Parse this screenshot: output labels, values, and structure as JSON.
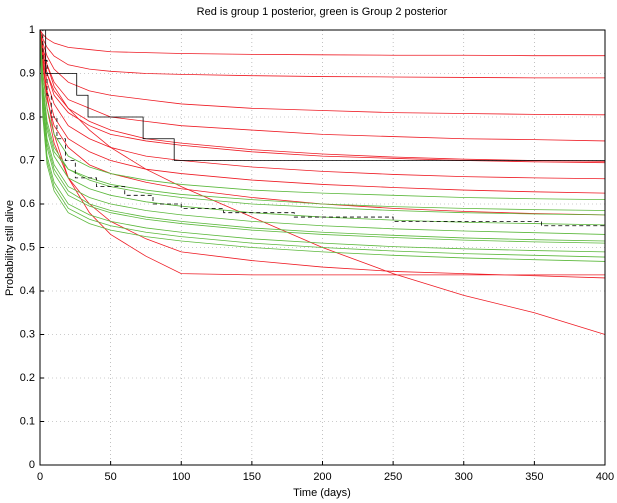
{
  "chart_data": {
    "type": "line",
    "title": "Red is group 1 posterior, green is Group 2 posterior",
    "xlabel": "Time (days)",
    "ylabel": "Probability still alive",
    "xlim": [
      0,
      400
    ],
    "ylim": [
      0,
      1
    ],
    "xticks": [
      0,
      50,
      100,
      150,
      200,
      250,
      300,
      350,
      400
    ],
    "yticks": [
      0,
      0.1,
      0.2,
      0.3,
      0.4,
      0.5,
      0.6,
      0.7,
      0.8,
      0.9,
      1
    ],
    "grid": true,
    "x": [
      0,
      2,
      5,
      10,
      20,
      35,
      50,
      75,
      100,
      150,
      200,
      250,
      300,
      350,
      400
    ],
    "series": [
      {
        "color": "#ee1c25",
        "values": [
          1,
          0.99,
          0.98,
          0.97,
          0.96,
          0.955,
          0.95,
          0.948,
          0.946,
          0.944,
          0.943,
          0.942,
          0.942,
          0.941,
          0.941
        ]
      },
      {
        "color": "#ee1c25",
        "values": [
          1,
          0.98,
          0.96,
          0.94,
          0.92,
          0.91,
          0.905,
          0.9,
          0.898,
          0.895,
          0.893,
          0.892,
          0.891,
          0.89,
          0.89
        ]
      },
      {
        "color": "#ee1c25",
        "values": [
          1,
          0.97,
          0.94,
          0.91,
          0.88,
          0.86,
          0.85,
          0.84,
          0.83,
          0.82,
          0.815,
          0.81,
          0.808,
          0.806,
          0.805
        ]
      },
      {
        "color": "#ee1c25",
        "values": [
          1,
          0.96,
          0.92,
          0.88,
          0.84,
          0.82,
          0.8,
          0.79,
          0.78,
          0.77,
          0.76,
          0.755,
          0.75,
          0.748,
          0.745
        ]
      },
      {
        "color": "#ee1c25",
        "values": [
          1,
          0.95,
          0.9,
          0.85,
          0.81,
          0.78,
          0.76,
          0.745,
          0.735,
          0.72,
          0.71,
          0.705,
          0.7,
          0.697,
          0.695
        ]
      },
      {
        "color": "#ee1c25",
        "values": [
          1,
          0.94,
          0.88,
          0.83,
          0.78,
          0.75,
          0.73,
          0.71,
          0.7,
          0.685,
          0.675,
          0.668,
          0.663,
          0.66,
          0.658
        ]
      },
      {
        "color": "#ee1c25",
        "values": [
          1,
          0.93,
          0.86,
          0.8,
          0.75,
          0.72,
          0.7,
          0.68,
          0.67,
          0.655,
          0.645,
          0.638,
          0.632,
          0.628,
          0.625
        ]
      },
      {
        "color": "#ee1c25",
        "values": [
          1,
          0.92,
          0.84,
          0.78,
          0.73,
          0.69,
          0.67,
          0.65,
          0.635,
          0.615,
          0.6,
          0.59,
          0.583,
          0.578,
          0.575
        ]
      },
      {
        "color": "#ee1c25",
        "values": [
          1,
          0.96,
          0.92,
          0.87,
          0.82,
          0.77,
          0.73,
          0.68,
          0.64,
          0.57,
          0.5,
          0.44,
          0.39,
          0.35,
          0.3
        ]
      },
      {
        "color": "#ee1c25",
        "values": [
          1,
          0.9,
          0.82,
          0.74,
          0.66,
          0.6,
          0.56,
          0.52,
          0.49,
          0.47,
          0.455,
          0.445,
          0.44,
          0.435,
          0.43
        ]
      },
      {
        "color": "#ee1c25",
        "values": [
          1,
          0.93,
          0.85,
          0.76,
          0.66,
          0.58,
          0.53,
          0.48,
          0.44,
          0.437,
          0.437,
          0.437,
          0.437,
          0.437,
          0.437
        ]
      },
      {
        "color": "#ee1c25",
        "values": [
          1,
          0.95,
          0.9,
          0.86,
          0.82,
          0.79,
          0.77,
          0.75,
          0.74,
          0.725,
          0.715,
          0.708,
          0.703,
          0.7,
          0.698
        ]
      },
      {
        "color": "#5cb83c",
        "values": [
          1,
          0.9,
          0.82,
          0.76,
          0.71,
          0.685,
          0.67,
          0.655,
          0.645,
          0.632,
          0.625,
          0.62,
          0.615,
          0.612,
          0.61
        ]
      },
      {
        "color": "#5cb83c",
        "values": [
          1,
          0.88,
          0.79,
          0.73,
          0.68,
          0.655,
          0.64,
          0.625,
          0.615,
          0.6,
          0.592,
          0.585,
          0.58,
          0.577,
          0.575
        ]
      },
      {
        "color": "#5cb83c",
        "values": [
          1,
          0.86,
          0.77,
          0.71,
          0.66,
          0.635,
          0.62,
          0.605,
          0.595,
          0.58,
          0.57,
          0.563,
          0.558,
          0.555,
          0.552
        ]
      },
      {
        "color": "#5cb83c",
        "values": [
          1,
          0.85,
          0.75,
          0.69,
          0.64,
          0.615,
          0.6,
          0.585,
          0.575,
          0.56,
          0.55,
          0.543,
          0.538,
          0.534,
          0.53
        ]
      },
      {
        "color": "#5cb83c",
        "values": [
          1,
          0.83,
          0.73,
          0.67,
          0.62,
          0.595,
          0.58,
          0.565,
          0.555,
          0.54,
          0.53,
          0.523,
          0.517,
          0.513,
          0.51
        ]
      },
      {
        "color": "#5cb83c",
        "values": [
          1,
          0.82,
          0.71,
          0.65,
          0.6,
          0.575,
          0.56,
          0.545,
          0.535,
          0.52,
          0.51,
          0.502,
          0.497,
          0.493,
          0.49
        ]
      },
      {
        "color": "#5cb83c",
        "values": [
          1,
          0.8,
          0.69,
          0.63,
          0.58,
          0.555,
          0.54,
          0.525,
          0.515,
          0.5,
          0.49,
          0.482,
          0.476,
          0.472,
          0.468
        ]
      },
      {
        "color": "#5cb83c",
        "values": [
          1,
          0.87,
          0.78,
          0.72,
          0.68,
          0.66,
          0.645,
          0.632,
          0.622,
          0.61,
          0.6,
          0.594,
          0.59,
          0.587,
          0.585
        ]
      },
      {
        "color": "#5cb83c",
        "values": [
          1,
          0.84,
          0.74,
          0.68,
          0.63,
          0.6,
          0.585,
          0.57,
          0.56,
          0.545,
          0.535,
          0.528,
          0.522,
          0.518,
          0.515
        ]
      },
      {
        "color": "#5cb83c",
        "values": [
          1,
          0.81,
          0.7,
          0.64,
          0.59,
          0.565,
          0.55,
          0.535,
          0.525,
          0.51,
          0.5,
          0.492,
          0.486,
          0.482,
          0.478
        ]
      },
      {
        "color": "#000000",
        "step": true,
        "x": [
          0,
          4,
          26,
          34,
          73,
          95,
          400
        ],
        "values": [
          1,
          0.9,
          0.85,
          0.8,
          0.75,
          0.7,
          0.7
        ]
      },
      {
        "color": "#000000",
        "step": true,
        "dash": true,
        "x": [
          0,
          2,
          5,
          8,
          12,
          18,
          25,
          40,
          60,
          80,
          100,
          130,
          180,
          250,
          355,
          400
        ],
        "values": [
          1,
          0.93,
          0.85,
          0.8,
          0.75,
          0.7,
          0.66,
          0.64,
          0.62,
          0.6,
          0.59,
          0.58,
          0.57,
          0.56,
          0.55,
          0.55
        ]
      }
    ]
  }
}
